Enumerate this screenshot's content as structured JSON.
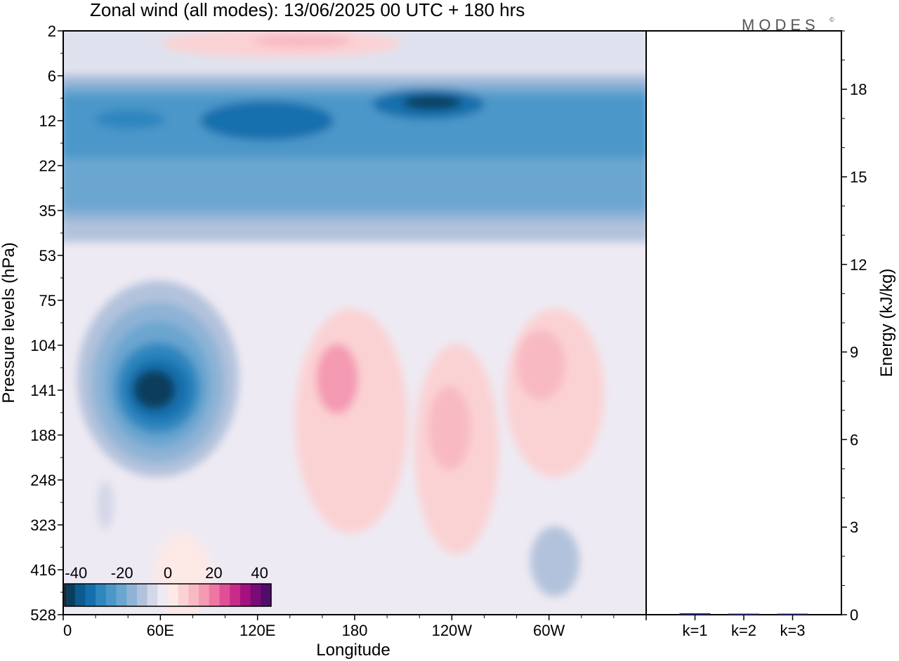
{
  "title": "Zonal wind (all modes):  13/06/2025  00 UTC  + 180 hrs",
  "logo": {
    "text": "MODES",
    "mark": "©"
  },
  "chart_data": [
    {
      "type": "heatmap",
      "xlabel": "Longitude",
      "ylabel": "Pressure levels (hPa)",
      "x_ticks": [
        "0",
        "60E",
        "120E",
        "180",
        "120W",
        "60W"
      ],
      "x_tick_degrees": [
        0,
        60,
        120,
        180,
        240,
        300
      ],
      "xlim_degrees": [
        0,
        360
      ],
      "y_ticks": [
        "2",
        "6",
        "12",
        "22",
        "35",
        "53",
        "75",
        "104",
        "141",
        "188",
        "248",
        "323",
        "416",
        "528"
      ],
      "y_axis": "pressure, decreasing upward",
      "colorbar": {
        "ticks": [
          "-40",
          "-20",
          "0",
          "20",
          "40"
        ],
        "tick_values": [
          -40,
          -20,
          0,
          20,
          40
        ],
        "range": [
          -45,
          45
        ],
        "colors": [
          "#0b3d5c",
          "#0d5a8c",
          "#1370ad",
          "#2e86bf",
          "#4b97c9",
          "#6aa6d0",
          "#8eb3d6",
          "#b3c2dc",
          "#d4d7e8",
          "#eeeaf3",
          "#fde9e6",
          "#fbd2d3",
          "#f8b9c3",
          "#f49ab2",
          "#ee76a2",
          "#e04f96",
          "#c82b8a",
          "#a3127f",
          "#7a0b77",
          "#520a6b"
        ]
      },
      "features": [
        {
          "field": "zonal wind",
          "region": "stratosphere 8-35 hPa, all longitudes",
          "value_range": [
            -35,
            -15
          ]
        },
        {
          "field": "zonal wind",
          "region": "core near 10 hPa, ~120W",
          "value_range": [
            -45,
            -35
          ]
        },
        {
          "field": "zonal wind",
          "region": "upper levels 2-4 hPa, ~120E-200E",
          "value_range": [
            10,
            25
          ]
        },
        {
          "field": "zonal wind",
          "region": "jet core ~140 hPa, 60E",
          "value_range": [
            -45,
            -30
          ]
        },
        {
          "field": "zonal wind",
          "region": "100-300 hPa, 140E-60W",
          "value_range": [
            5,
            25
          ]
        }
      ]
    },
    {
      "type": "bar",
      "categories": [
        "k=1",
        "k=2",
        "k=3"
      ],
      "values": [
        0.05,
        0.03,
        0.02
      ],
      "ylabel": "Energy (kJ/kg)",
      "ylim": [
        0,
        20
      ],
      "y_ticks": [
        0,
        3,
        6,
        9,
        12,
        15,
        18
      ],
      "bar_color": "#2a2a80"
    }
  ]
}
